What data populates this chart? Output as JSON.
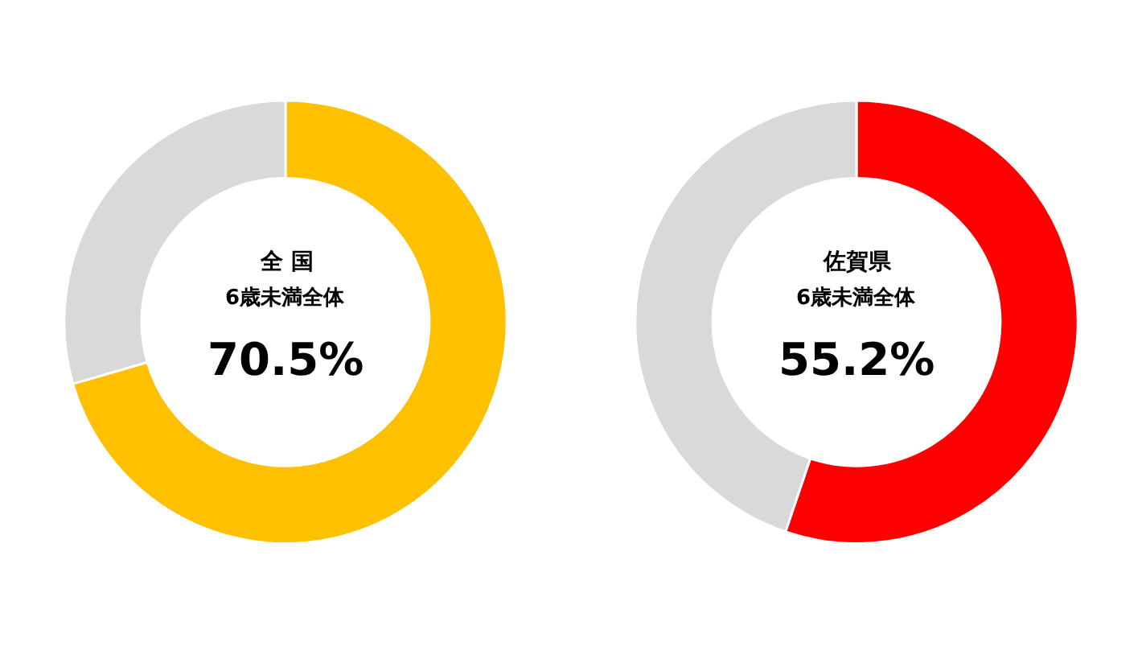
{
  "chart_data": [
    {
      "type": "donut",
      "title": "全 国",
      "subtitle": "6歳未満全体",
      "categories": [
        null,
        null
      ],
      "values": [
        70.5,
        29.5
      ],
      "colors": [
        "#ffc000",
        "#d9d9d9"
      ],
      "annotations": [
        "70.5%"
      ]
    },
    {
      "type": "donut",
      "title": "佐賀県",
      "subtitle": "6歳未満全体",
      "categories": [
        null,
        null
      ],
      "values": [
        55.2,
        44.8
      ],
      "colors": [
        "#ff0000",
        "#d9d9d9"
      ],
      "annotations": [
        "55.2%"
      ]
    }
  ]
}
